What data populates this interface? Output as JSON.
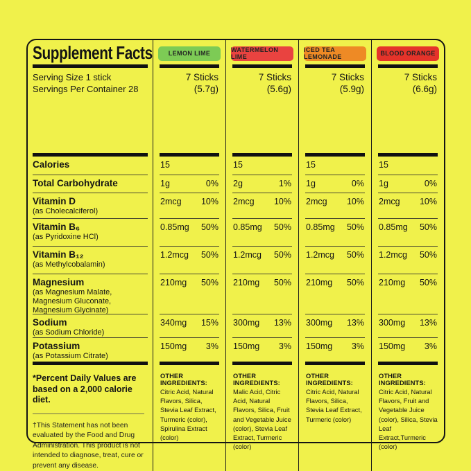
{
  "panel": {
    "title": "Supplement Facts",
    "serving_size": "Serving Size 1 stick",
    "servings_per_container": "Servings Per Container 28",
    "other_ingredients_label": "OTHER INGREDIENTS:",
    "footnote_daily_values": "*Percent Daily Values are based on a 2,000 calorie diet.",
    "footnote_fda": "†This Statement has not been evaluated by the Food and Drug Administration. This product is not intended to diagnose, treat, cure or prevent any disease."
  },
  "colors": {
    "background": "#f0f14b",
    "line": "#141414",
    "lemon_lime_badge": "#7dcb55",
    "watermelon_lime_badge": "#e94340",
    "iced_tea_lemonade_badge": "#ee8a25",
    "blood_orange_badge": "#e5332a"
  },
  "nutrients": [
    {
      "name": "Calories",
      "detail": ""
    },
    {
      "name": "Total Carbohydrate",
      "detail": ""
    },
    {
      "name": "Vitamin D",
      "detail": "(as Cholecalciferol)"
    },
    {
      "name": "Vitamin B₆",
      "detail": "(as Pyridoxine HCl)"
    },
    {
      "name": "Vitamin B₁₂",
      "detail": "(as Methylcobalamin)"
    },
    {
      "name": "Magnesium",
      "detail": "(as Magnesium Malate, Magnesium Gluconate, Magnesium Glycinate)"
    },
    {
      "name": "Sodium",
      "detail": "(as Sodium Chloride)"
    },
    {
      "name": "Potassium",
      "detail": "(as Potassium Citrate)"
    }
  ],
  "flavors": [
    {
      "name": "LEMON LIME",
      "sticks": "7 Sticks",
      "weight": "(5.7g)",
      "rows": [
        {
          "amount": "15",
          "dv": ""
        },
        {
          "amount": "1g",
          "dv": "0%"
        },
        {
          "amount": "2mcg",
          "dv": "10%"
        },
        {
          "amount": "0.85mg",
          "dv": "50%"
        },
        {
          "amount": "1.2mcg",
          "dv": "50%"
        },
        {
          "amount": "210mg",
          "dv": "50%"
        },
        {
          "amount": "340mg",
          "dv": "15%"
        },
        {
          "amount": "150mg",
          "dv": "3%"
        }
      ],
      "other_ingredients": "Citric Acid, Natural Flavors, Silica, Stevia Leaf Extract, Turmeric (color), Spirulina Extract (color)"
    },
    {
      "name": "WATERMELON LIME",
      "sticks": "7 Sticks",
      "weight": "(5.6g)",
      "rows": [
        {
          "amount": "15",
          "dv": ""
        },
        {
          "amount": "2g",
          "dv": "1%"
        },
        {
          "amount": "2mcg",
          "dv": "10%"
        },
        {
          "amount": "0.85mg",
          "dv": "50%"
        },
        {
          "amount": "1.2mcg",
          "dv": "50%"
        },
        {
          "amount": "210mg",
          "dv": "50%"
        },
        {
          "amount": "300mg",
          "dv": "13%"
        },
        {
          "amount": "150mg",
          "dv": "3%"
        }
      ],
      "other_ingredients": "Malic Acid, Citric Acid, Natural Flavors, Silica, Fruit and Vegetable Juice (color), Stevia Leaf Extract, Turmeric (color)"
    },
    {
      "name": "ICED TEA LEMONADE",
      "sticks": "7 Sticks",
      "weight": "(5.9g)",
      "rows": [
        {
          "amount": "15",
          "dv": ""
        },
        {
          "amount": "1g",
          "dv": "0%"
        },
        {
          "amount": "2mcg",
          "dv": "10%"
        },
        {
          "amount": "0.85mg",
          "dv": "50%"
        },
        {
          "amount": "1.2mcg",
          "dv": "50%"
        },
        {
          "amount": "210mg",
          "dv": "50%"
        },
        {
          "amount": "300mg",
          "dv": "13%"
        },
        {
          "amount": "150mg",
          "dv": "3%"
        }
      ],
      "other_ingredients": "Citric Acid, Natural Flavors, Silica, Stevia Leaf Extract, Turmeric (color)"
    },
    {
      "name": "BLOOD ORANGE",
      "sticks": "7 Sticks",
      "weight": "(6.6g)",
      "rows": [
        {
          "amount": "15",
          "dv": ""
        },
        {
          "amount": "1g",
          "dv": "0%"
        },
        {
          "amount": "2mcg",
          "dv": "10%"
        },
        {
          "amount": "0.85mg",
          "dv": "50%"
        },
        {
          "amount": "1.2mcg",
          "dv": "50%"
        },
        {
          "amount": "210mg",
          "dv": "50%"
        },
        {
          "amount": "300mg",
          "dv": "13%"
        },
        {
          "amount": "150mg",
          "dv": "3%"
        }
      ],
      "other_ingredients": "Citric Acid, Natural Flavors, Fruit and Vegetable Juice (color), Silica, Stevia Leaf Extract,Turmeric (color)"
    }
  ]
}
